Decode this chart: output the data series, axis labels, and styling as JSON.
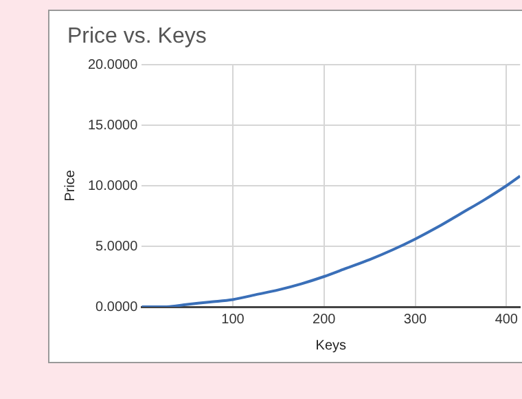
{
  "chart_data": {
    "type": "line",
    "title": "Price vs. Keys",
    "xlabel": "Keys",
    "ylabel": "Price",
    "x": [
      0,
      25,
      50,
      75,
      100,
      125,
      150,
      175,
      200,
      225,
      250,
      275,
      300,
      325,
      350,
      375,
      400,
      415
    ],
    "series": [
      {
        "color": "#3a6fb8",
        "values": [
          0,
          0.0,
          0.2,
          0.4,
          0.6,
          1.0,
          1.4,
          1.9,
          2.5,
          3.2,
          3.9,
          4.7,
          5.6,
          6.6,
          7.7,
          8.8,
          10.0,
          10.8
        ]
      }
    ],
    "xlim": [
      0,
      415
    ],
    "xticks": [
      100,
      200,
      300,
      400
    ],
    "ylim": [
      0,
      20
    ],
    "yticks": [
      {
        "value": 0,
        "label": "0.0000"
      },
      {
        "value": 5,
        "label": "5.0000"
      },
      {
        "value": 10,
        "label": "10.0000"
      },
      {
        "value": 15,
        "label": "15.0000"
      },
      {
        "value": 20,
        "label": "20.0000"
      }
    ],
    "grid": true,
    "legend": false,
    "marker": "none",
    "line_style": "solid"
  }
}
